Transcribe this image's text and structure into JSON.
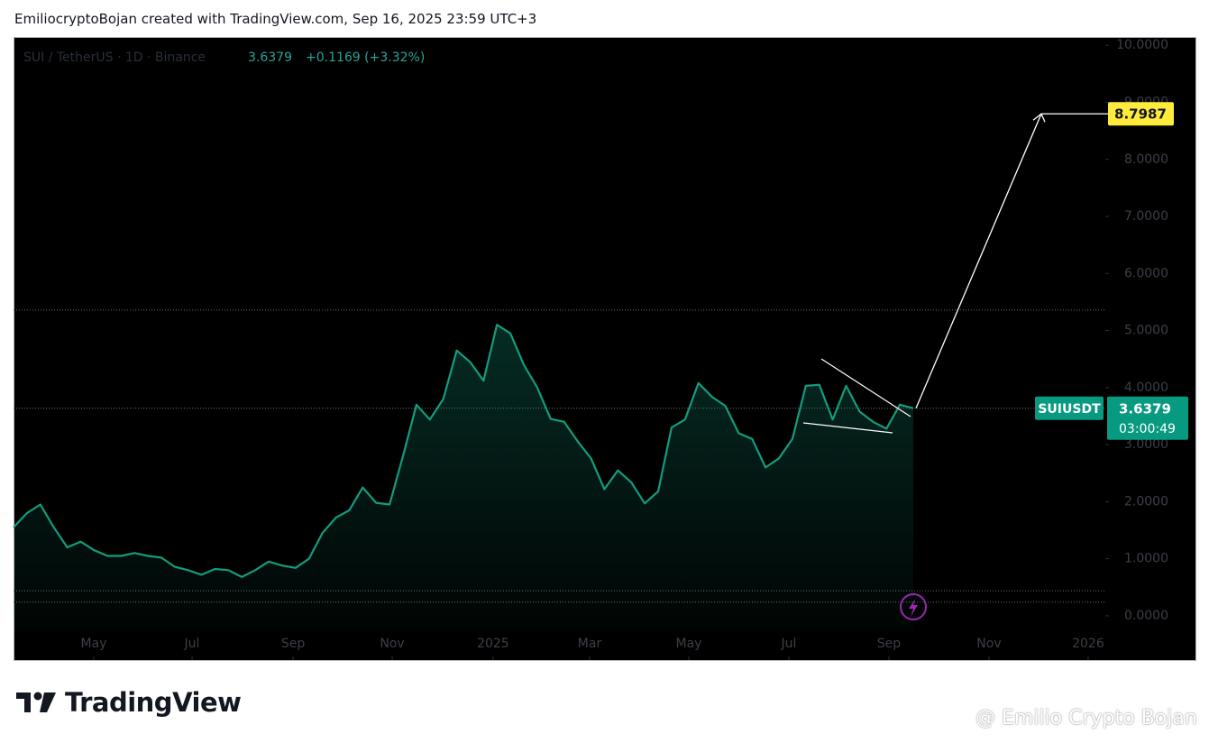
{
  "header": "EmiliocryptoBojan created with TradingView.com, Sep 16, 2025 23:59 UTC+3",
  "chart_data": {
    "type": "line",
    "legend": {
      "symbol": "SUI / TetherUS · 1D · Binance",
      "price": "3.6379",
      "change": "+0.1169 (+3.32%)"
    },
    "values": [
      1.55,
      1.8,
      1.95,
      1.55,
      1.2,
      1.3,
      1.15,
      1.05,
      1.05,
      1.1,
      1.05,
      1.02,
      0.86,
      0.8,
      0.72,
      0.82,
      0.8,
      0.68,
      0.8,
      0.95,
      0.88,
      0.84,
      1.0,
      1.45,
      1.72,
      1.85,
      2.25,
      1.98,
      1.95,
      2.8,
      3.7,
      3.44,
      3.8,
      4.65,
      4.45,
      4.12,
      5.1,
      4.95,
      4.4,
      4.0,
      3.45,
      3.4,
      3.06,
      2.76,
      2.22,
      2.55,
      2.34,
      1.97,
      2.18,
      3.3,
      3.44,
      4.08,
      3.84,
      3.68,
      3.2,
      3.1,
      2.6,
      2.76,
      3.1,
      4.03,
      4.05,
      3.44,
      4.03,
      3.58,
      3.4,
      3.28,
      3.7,
      3.6379
    ],
    "color": "#139c7f",
    "xlim": [
      0,
      81.28
    ],
    "xticks": [
      {
        "value": 5.97,
        "label": "May"
      },
      {
        "value": 13.29,
        "label": "Jul"
      },
      {
        "value": 20.81,
        "label": "Sep"
      },
      {
        "value": 28.19,
        "label": "Nov"
      },
      {
        "value": 35.7,
        "label": "2025"
      },
      {
        "value": 42.89,
        "label": "Mar"
      },
      {
        "value": 50.27,
        "label": "May"
      },
      {
        "value": 57.72,
        "label": "Jul"
      },
      {
        "value": 65.17,
        "label": "Sep"
      },
      {
        "value": 72.62,
        "label": "Nov"
      },
      {
        "value": 80,
        "label": "2026"
      }
    ],
    "ylim": [
      -0.27,
      10.13
    ],
    "yticks": [
      {
        "value": 0,
        "label": "0.0000"
      },
      {
        "value": 1,
        "label": "1.0000"
      },
      {
        "value": 2,
        "label": "2.0000"
      },
      {
        "value": 3,
        "label": "3.0000"
      },
      {
        "value": 4,
        "label": "4.0000"
      },
      {
        "value": 5,
        "label": "5.0000"
      },
      {
        "value": 6,
        "label": "6.0000"
      },
      {
        "value": 7,
        "label": "7.0000"
      },
      {
        "value": 8,
        "label": "8.0000"
      },
      {
        "value": 9,
        "label": "9.0000"
      },
      {
        "value": 10,
        "label": "10.0000"
      }
    ],
    "levels": [
      5.36,
      0.44,
      0.24
    ],
    "price_tag": {
      "symbol": "SUIUSDT",
      "price": 3.6379,
      "countdown": "03:00:49"
    },
    "target": 8.7987
  },
  "footer": {
    "logo": "TradingView",
    "watermark": "@ Emilio Crypto Bojan"
  }
}
